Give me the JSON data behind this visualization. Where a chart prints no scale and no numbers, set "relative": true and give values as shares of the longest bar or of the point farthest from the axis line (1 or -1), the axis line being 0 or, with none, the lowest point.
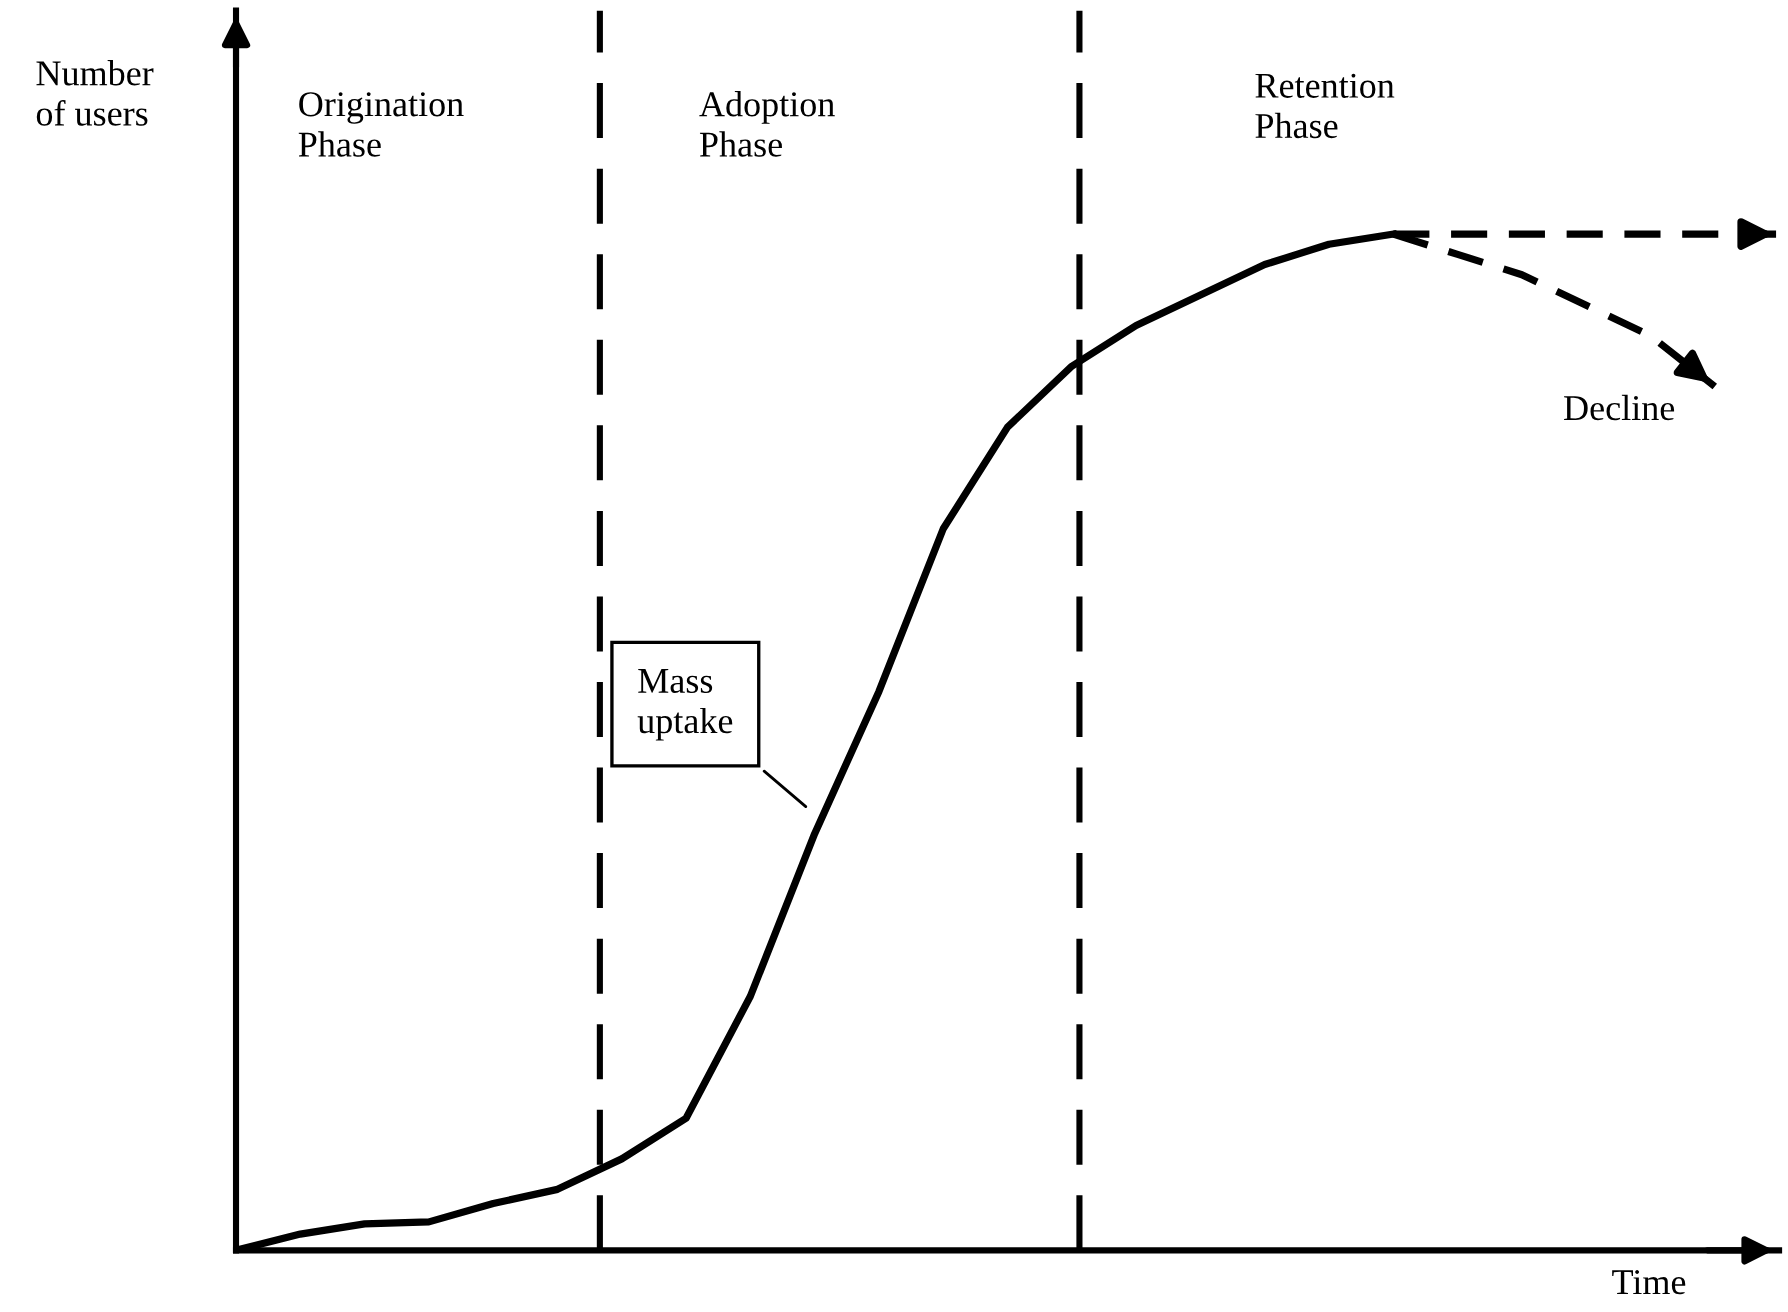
{
  "chart_data": {
    "type": "line",
    "relative": true,
    "xlabel": "Time",
    "ylabel": "Number\nof users",
    "categories": [
      null,
      null,
      null,
      null,
      null,
      null,
      null,
      null,
      null,
      null,
      null,
      null,
      null,
      null,
      null,
      null,
      null,
      null,
      null,
      null,
      null,
      null,
      null,
      null,
      null
    ],
    "series": [
      {
        "color": "#000000",
        "line_style": "solid",
        "values": [
          0,
          0.016,
          0.026,
          0.028,
          0.046,
          0.06,
          0.09,
          0.13,
          0.25,
          0.41,
          0.55,
          0.71,
          0.81,
          0.87,
          0.91,
          0.94,
          0.97,
          0.99,
          1.0,
          null,
          null,
          null,
          null,
          null,
          null
        ]
      },
      {
        "color": "#000000",
        "line_style": "dashed",
        "values": [
          null,
          null,
          null,
          null,
          null,
          null,
          null,
          null,
          null,
          null,
          null,
          null,
          null,
          null,
          null,
          null,
          null,
          null,
          1.0,
          1.0,
          1.0,
          1.0,
          1.0,
          1.0,
          1.0
        ]
      },
      {
        "color": "#000000",
        "line_style": "dashed",
        "values": [
          null,
          null,
          null,
          null,
          null,
          null,
          null,
          null,
          null,
          null,
          null,
          null,
          null,
          null,
          null,
          null,
          null,
          null,
          1.0,
          0.98,
          0.96,
          0.93,
          0.9,
          0.85,
          null
        ]
      }
    ],
    "annotations": [
      "Origination\nPhase",
      "Adoption\nPhase",
      "Retention\nPhase",
      "Mass\nuptake",
      "Decline"
    ],
    "grid": false
  }
}
